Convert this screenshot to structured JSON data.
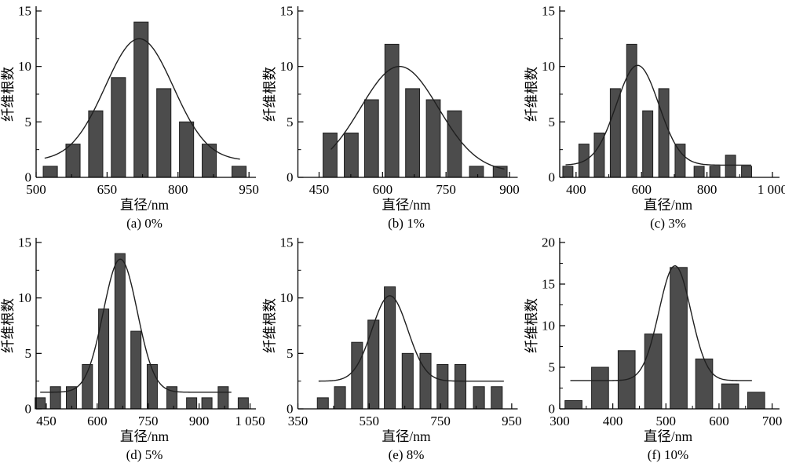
{
  "figure": {
    "background": "#ffffff",
    "axis_color": "#000000",
    "bar_fill": "#4c4c4c",
    "bar_edge": "#1f1f1f",
    "curve_color": "#1f1f1f",
    "xlabel": "直径/nm",
    "ylabel": "纤维根数"
  },
  "chart_data": [
    {
      "type": "bar",
      "panel": "a",
      "caption": "(a) 0%",
      "xlabel": "直径/nm",
      "ylabel": "纤维根数",
      "xlim": [
        500,
        958
      ],
      "ylim": [
        0,
        15
      ],
      "xticks": [
        500,
        650,
        800,
        950
      ],
      "xtick_labels": [
        "500",
        "650",
        "800",
        "950"
      ],
      "xminor_ticks": [
        575,
        725,
        875
      ],
      "yticks": [
        0,
        5,
        10,
        15
      ],
      "ytick_labels": [
        "0",
        "5",
        "10",
        "15"
      ],
      "yminor_ticks": [
        2.5,
        7.5,
        12.5
      ],
      "bar_centers": [
        530,
        578,
        626,
        674,
        722,
        770,
        818,
        866,
        929
      ],
      "bar_values": [
        1,
        3,
        6,
        9,
        14,
        8,
        5,
        3,
        1
      ],
      "bar_width_nm": 30,
      "gauss_fit": {
        "baseline": 1.5,
        "amplitude": 11.0,
        "center": 718,
        "sigma": 72,
        "x_start": 518,
        "x_end": 931
      }
    },
    {
      "type": "bar",
      "panel": "b",
      "caption": "(b) 1%",
      "xlabel": "直径/nm",
      "ylabel": "纤维根数",
      "xlim": [
        400,
        912
      ],
      "ylim": [
        0,
        15
      ],
      "xticks": [
        450,
        600,
        750,
        900
      ],
      "xtick_labels": [
        "450",
        "600",
        "750",
        "900"
      ],
      "xminor_ticks": [
        525,
        675,
        825
      ],
      "yticks": [
        0,
        5,
        10,
        15
      ],
      "ytick_labels": [
        "0",
        "5",
        "10",
        "15"
      ],
      "yminor_ticks": [
        2.5,
        7.5,
        12.5
      ],
      "bar_centers": [
        476,
        526,
        574,
        622,
        671,
        720,
        770,
        822,
        878
      ],
      "bar_values": [
        4,
        4,
        7,
        12,
        8,
        7,
        6,
        1,
        1
      ],
      "bar_width_nm": 33,
      "gauss_fit": {
        "baseline": 0.5,
        "amplitude": 9.5,
        "center": 640,
        "sigma": 92,
        "x_start": 478,
        "x_end": 888
      }
    },
    {
      "type": "bar",
      "panel": "c",
      "caption": "(c) 3%",
      "xlabel": "直径/nm",
      "ylabel": "纤维根数",
      "xlim": [
        350,
        1012
      ],
      "ylim": [
        0,
        15
      ],
      "xticks": [
        400,
        600,
        800,
        1000
      ],
      "xtick_labels": [
        "400",
        "600",
        "800",
        "1 000"
      ],
      "xminor_ticks": [
        500,
        700,
        900
      ],
      "yticks": [
        0,
        5,
        10,
        15
      ],
      "ytick_labels": [
        "0",
        "5",
        "10",
        "15"
      ],
      "yminor_ticks": [
        2.5,
        7.5,
        12.5
      ],
      "bar_centers": [
        375,
        424,
        471,
        520,
        570,
        619,
        668,
        718,
        776,
        824,
        872,
        921
      ],
      "bar_values": [
        1,
        3,
        4,
        8,
        12,
        6,
        8,
        3,
        1,
        1,
        2,
        1
      ],
      "bar_width_nm": 31,
      "gauss_fit": {
        "baseline": 1.1,
        "amplitude": 9.0,
        "center": 588,
        "sigma": 65,
        "x_start": 368,
        "x_end": 935
      }
    },
    {
      "type": "bar",
      "panel": "d",
      "caption": "(d) 5%",
      "xlabel": "直径/nm",
      "ylabel": "纤维根数",
      "xlim": [
        420,
        1058
      ],
      "ylim": [
        0,
        15
      ],
      "xticks": [
        450,
        600,
        750,
        900,
        1050
      ],
      "xtick_labels": [
        "450",
        "600",
        "750",
        "900",
        "1 050"
      ],
      "xminor_ticks": [
        525,
        675,
        825,
        975
      ],
      "yticks": [
        0,
        5,
        10,
        15
      ],
      "ytick_labels": [
        "0",
        "5",
        "10",
        "15"
      ],
      "yminor_ticks": [
        2.5,
        7.5,
        12.5
      ],
      "bar_centers": [
        432,
        477,
        524,
        571,
        619,
        667,
        714,
        762,
        820,
        878,
        923,
        971,
        1030
      ],
      "bar_values": [
        1,
        2,
        2,
        4,
        9,
        14,
        7,
        4,
        2,
        1,
        1,
        2,
        1
      ],
      "bar_width_nm": 30,
      "gauss_fit": {
        "baseline": 1.5,
        "amplitude": 12.0,
        "center": 668,
        "sigma": 50,
        "x_start": 432,
        "x_end": 995
      }
    },
    {
      "type": "bar",
      "panel": "e",
      "caption": "(e) 8%",
      "xlabel": "直径/nm",
      "ylabel": "纤维根数",
      "xlim": [
        350,
        958
      ],
      "ylim": [
        0,
        15
      ],
      "xticks": [
        350,
        550,
        750,
        950
      ],
      "xtick_labels": [
        "350",
        "550",
        "750",
        "950"
      ],
      "xminor_ticks": [
        450,
        650,
        850
      ],
      "yticks": [
        0,
        5,
        10,
        15
      ],
      "ytick_labels": [
        "0",
        "5",
        "10",
        "15"
      ],
      "yminor_ticks": [
        2.5,
        7.5,
        12.5
      ],
      "bar_centers": [
        420,
        468,
        516,
        562,
        608,
        658,
        708,
        756,
        806,
        858,
        908
      ],
      "bar_values": [
        1,
        2,
        6,
        8,
        11,
        5,
        5,
        4,
        4,
        2,
        2
      ],
      "bar_width_nm": 31,
      "gauss_fit": {
        "baseline": 2.5,
        "amplitude": 7.7,
        "center": 608,
        "sigma": 50,
        "x_start": 408,
        "x_end": 928
      }
    },
    {
      "type": "bar",
      "panel": "f",
      "caption": "(f) 10%",
      "xlabel": "直径/nm",
      "ylabel": "纤维根数",
      "xlim": [
        300,
        708
      ],
      "ylim": [
        0,
        20
      ],
      "xticks": [
        300,
        400,
        500,
        600,
        700
      ],
      "xtick_labels": [
        "300",
        "400",
        "500",
        "600",
        "700"
      ],
      "xminor_ticks": [
        350,
        450,
        550,
        650
      ],
      "yticks": [
        0,
        5,
        10,
        15,
        20
      ],
      "ytick_labels": [
        "0",
        "5",
        "10",
        "15",
        "20"
      ],
      "yminor_ticks": [
        2.5,
        7.5,
        12.5,
        17.5
      ],
      "bar_centers": [
        326,
        376,
        426,
        476,
        524,
        572,
        621,
        670
      ],
      "bar_values": [
        1,
        5,
        7,
        9,
        17,
        6,
        3,
        2
      ],
      "bar_width_nm": 32,
      "gauss_fit": {
        "baseline": 3.4,
        "amplitude": 13.8,
        "center": 517,
        "sigma": 30,
        "x_start": 320,
        "x_end": 662
      }
    }
  ]
}
